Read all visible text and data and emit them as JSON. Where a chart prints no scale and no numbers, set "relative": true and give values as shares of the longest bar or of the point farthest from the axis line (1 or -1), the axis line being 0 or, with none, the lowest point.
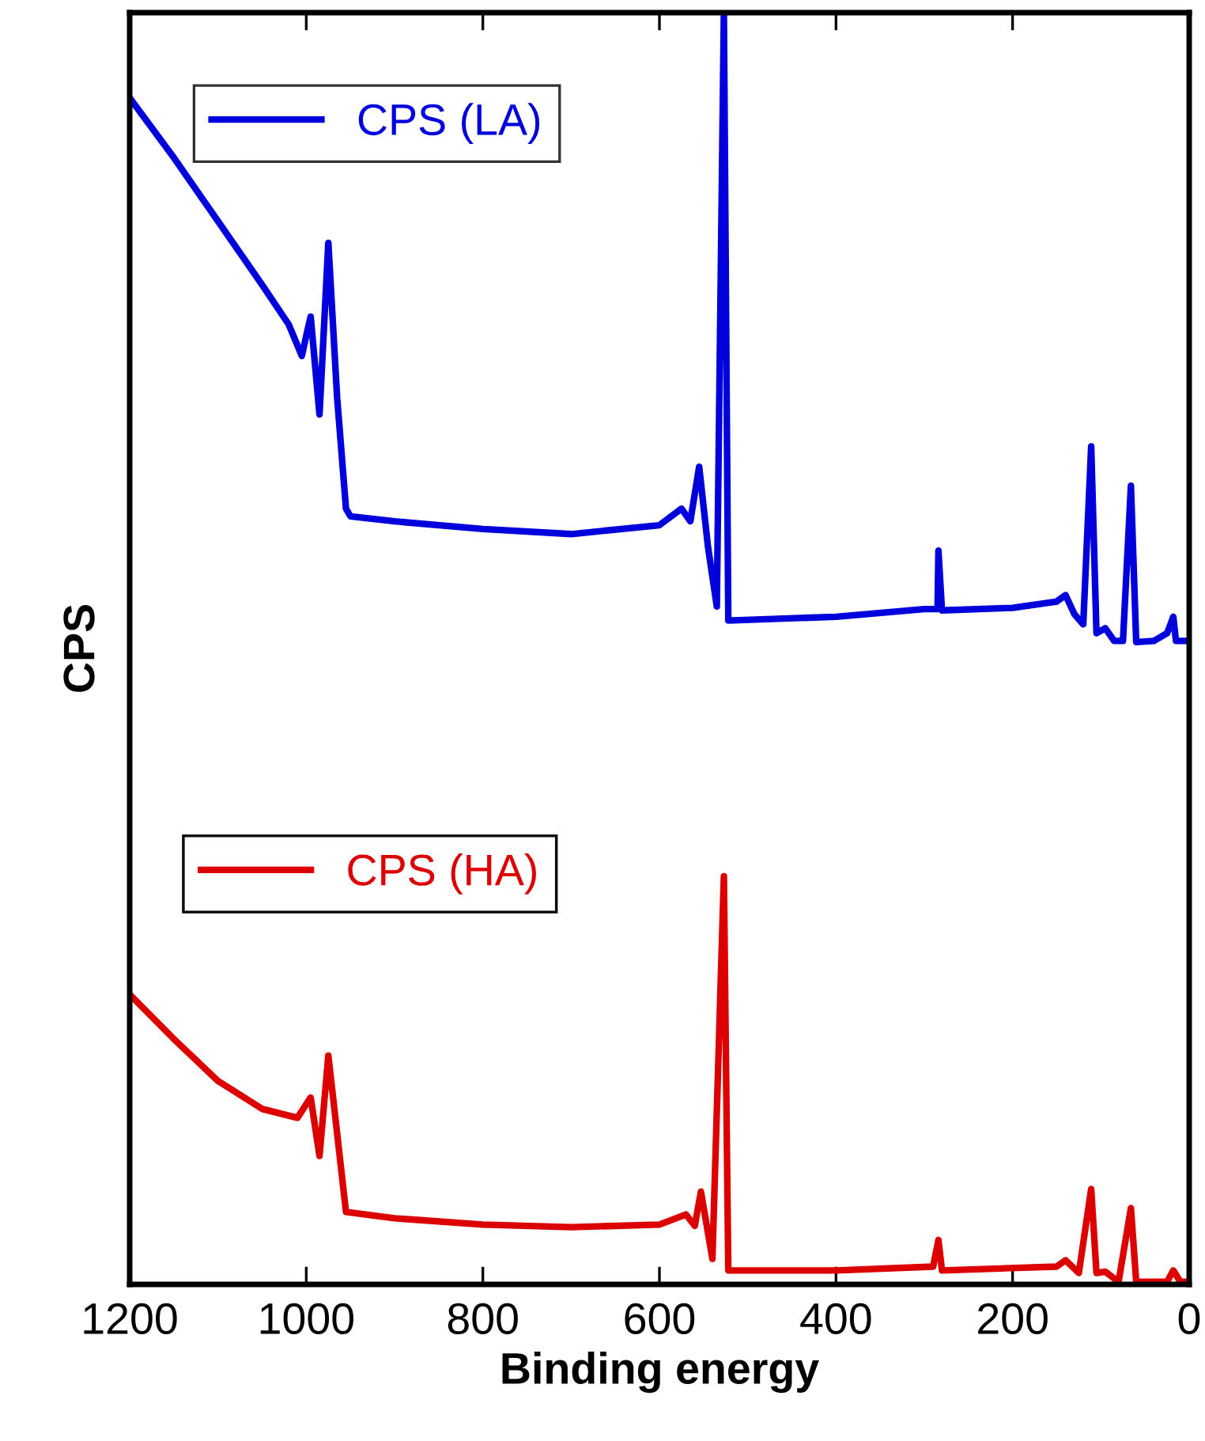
{
  "chart_data": {
    "type": "line",
    "xlabel": "Binding energy",
    "ylabel": "CPS",
    "relative": true,
    "xlim": [
      1200,
      0
    ],
    "xticks": [
      1200,
      1000,
      800,
      600,
      400,
      200,
      0
    ],
    "legend": "top left",
    "grid": false,
    "marker": "none",
    "line_style": "solid",
    "series": [
      {
        "name": "CPS (LA)",
        "color": "#0000dd",
        "x": [
          1200,
          1150,
          1100,
          1050,
          1020,
          1005,
          1000,
          995,
          985,
          975,
          965,
          955,
          950,
          900,
          800,
          700,
          600,
          575,
          565,
          555,
          545,
          535,
          527,
          522,
          400,
          300,
          285,
          284,
          280,
          200,
          150,
          140,
          130,
          120,
          111,
          105,
          95,
          85,
          75,
          66,
          60,
          40,
          25,
          18,
          15,
          0
        ],
        "values": [
          0.933,
          0.886,
          0.836,
          0.786,
          0.755,
          0.73,
          0.746,
          0.761,
          0.684,
          0.819,
          0.697,
          0.61,
          0.604,
          0.6,
          0.594,
          0.59,
          0.597,
          0.61,
          0.6,
          0.643,
          0.58,
          0.533,
          1.0,
          0.522,
          0.525,
          0.531,
          0.531,
          0.577,
          0.53,
          0.532,
          0.537,
          0.542,
          0.527,
          0.519,
          0.659,
          0.512,
          0.516,
          0.506,
          0.506,
          0.628,
          0.505,
          0.506,
          0.512,
          0.525,
          0.506,
          0.506
        ]
      },
      {
        "name": "CPS (HA)",
        "color": "#dd0000",
        "x": [
          1200,
          1150,
          1100,
          1050,
          1010,
          995,
          985,
          975,
          955,
          900,
          800,
          700,
          600,
          570,
          560,
          553,
          540,
          527,
          522,
          400,
          290,
          284,
          280,
          150,
          140,
          125,
          111,
          105,
          95,
          80,
          66,
          60,
          25,
          18,
          10,
          0
        ],
        "values": [
          0.228,
          0.193,
          0.16,
          0.138,
          0.131,
          0.147,
          0.101,
          0.18,
          0.057,
          0.052,
          0.047,
          0.045,
          0.047,
          0.055,
          0.046,
          0.073,
          0.02,
          0.321,
          0.011,
          0.011,
          0.014,
          0.035,
          0.011,
          0.014,
          0.019,
          0.009,
          0.075,
          0.009,
          0.01,
          0.002,
          0.06,
          0.002,
          0.002,
          0.011,
          0.002,
          0.002
        ]
      }
    ]
  }
}
